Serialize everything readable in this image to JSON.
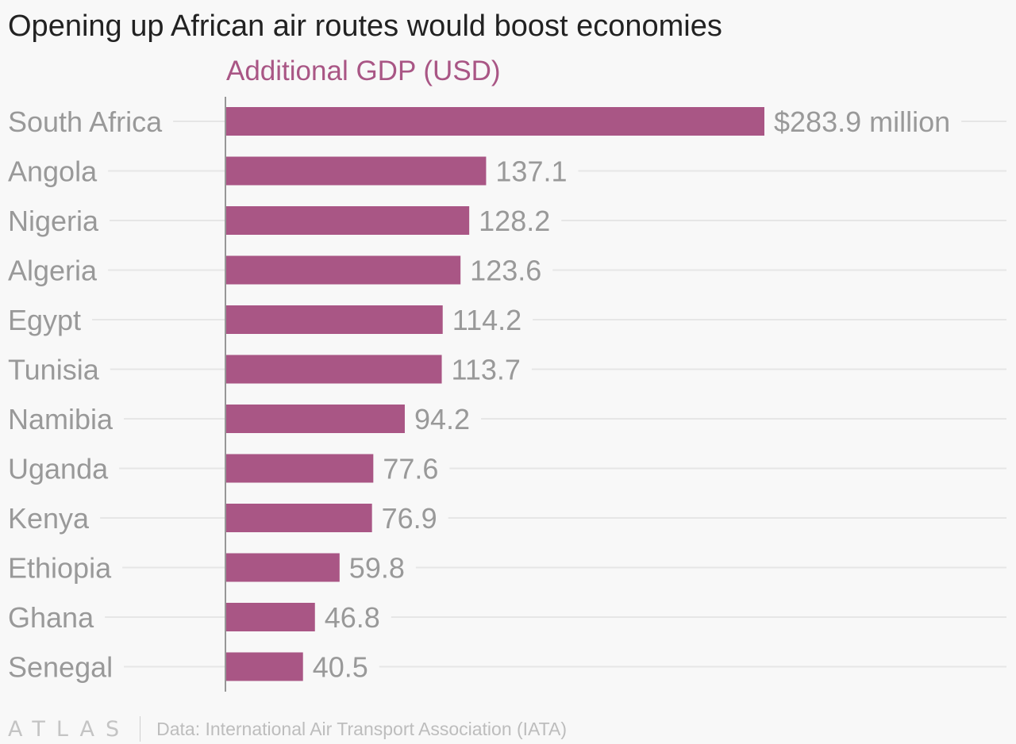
{
  "header": {
    "title": "Opening up African air routes would boost economies"
  },
  "chart_data": {
    "type": "bar",
    "orientation": "horizontal",
    "title": "Opening up African air routes would boost economies",
    "series": [
      {
        "name": "Additional GDP (USD)",
        "color": "#a95685",
        "values": [
          283.9,
          137.1,
          128.2,
          123.6,
          114.2,
          113.7,
          94.2,
          77.6,
          76.9,
          59.8,
          46.8,
          40.5
        ]
      }
    ],
    "categories": [
      "South Africa",
      "Angola",
      "Nigeria",
      "Algeria",
      "Egypt",
      "Tunisia",
      "Namibia",
      "Uganda",
      "Kenya",
      "Ethiopia",
      "Ghana",
      "Senegal"
    ],
    "value_labels": [
      "$283.9 million",
      "137.1",
      "128.2",
      "123.6",
      "114.2",
      "113.7",
      "94.2",
      "77.6",
      "76.9",
      "59.8",
      "46.8",
      "40.5"
    ],
    "xlim": [
      0,
      283.9
    ],
    "grid": true,
    "legend": "top"
  },
  "footer": {
    "logo_text": "ATLAS",
    "source": "Data: International Air Transport Association (IATA)"
  },
  "colors": {
    "bar": "#a95685",
    "series_label": "#a95685",
    "category_label": "#999999",
    "value_label": "#999999",
    "gridline": "#e6e6e6",
    "axis": "#777777"
  }
}
